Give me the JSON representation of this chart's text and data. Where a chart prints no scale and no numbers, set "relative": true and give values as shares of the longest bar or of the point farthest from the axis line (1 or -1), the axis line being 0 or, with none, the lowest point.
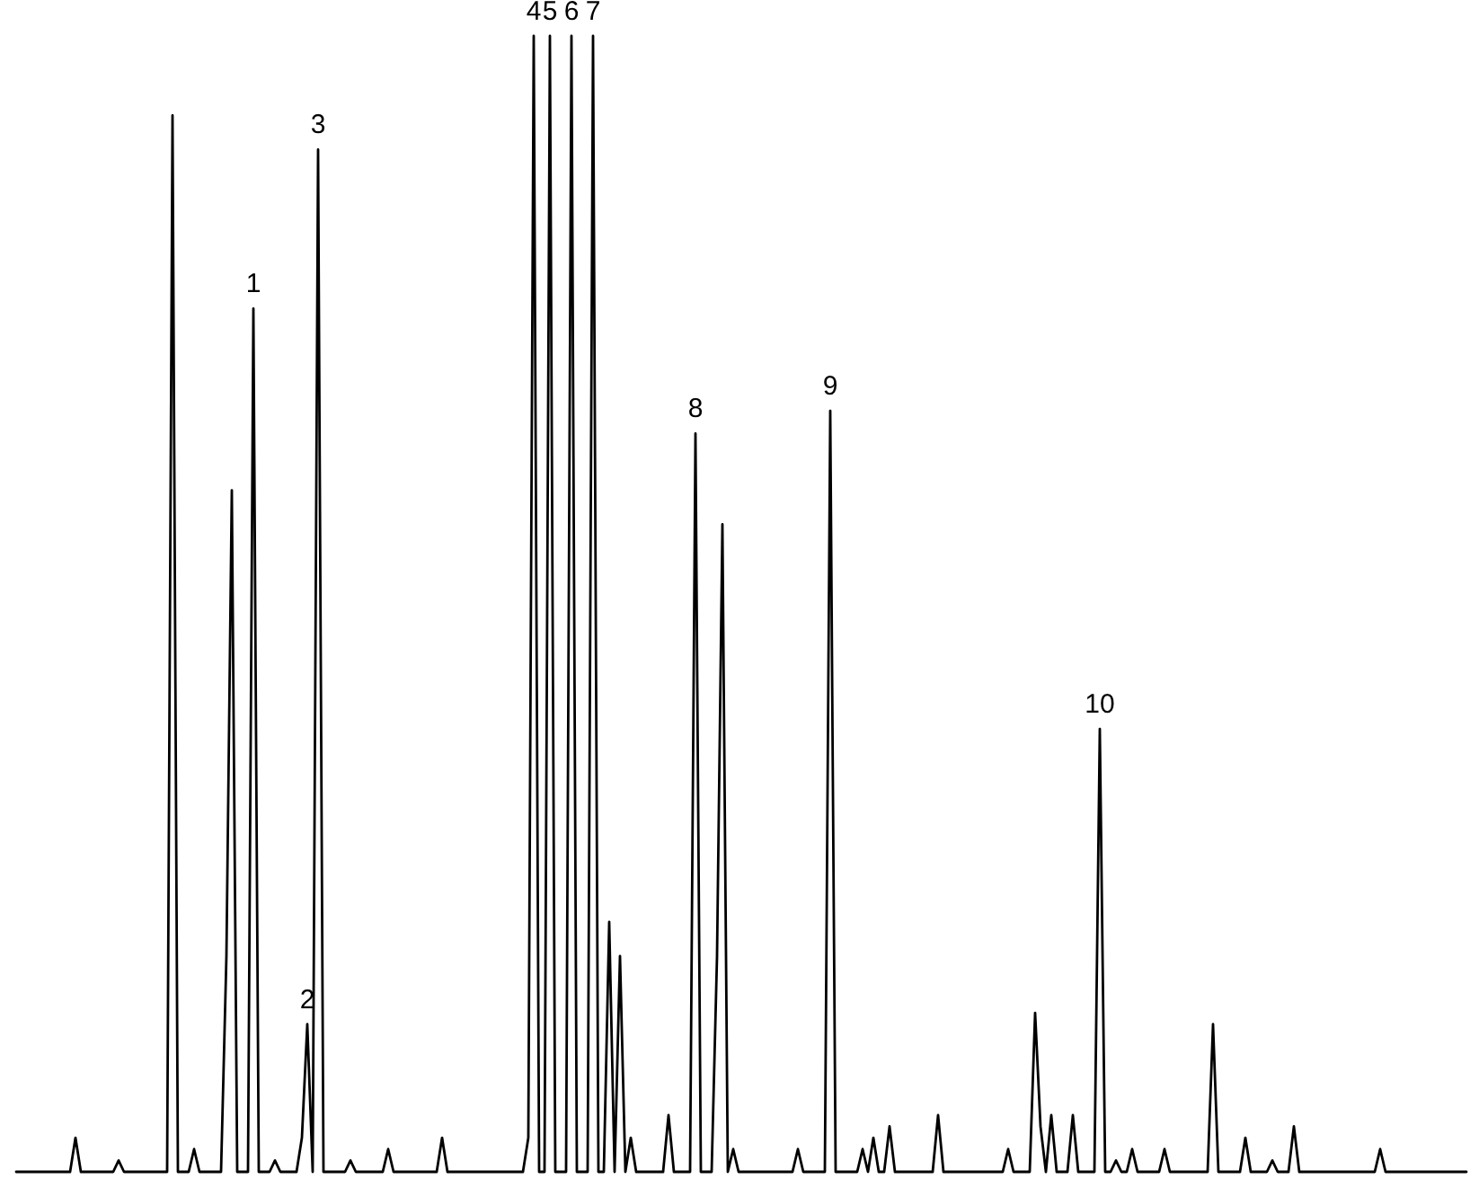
{
  "chart_data": {
    "type": "line",
    "relative": true,
    "categories": [
      null,
      null,
      null,
      null,
      null,
      null,
      null,
      null,
      null,
      null,
      null,
      null,
      null,
      null,
      null,
      null,
      null,
      null,
      null,
      null,
      null,
      null,
      null,
      null,
      null,
      null,
      null,
      null,
      null,
      null,
      null,
      null,
      null,
      null,
      null,
      null,
      null,
      null,
      null,
      null,
      null,
      null,
      null,
      null,
      "1",
      null,
      null,
      null,
      null,
      null,
      null,
      null,
      null,
      null,
      "2",
      null,
      "3",
      null,
      null,
      null,
      null,
      null,
      null,
      null,
      null,
      null,
      null,
      null,
      null,
      null,
      null,
      null,
      null,
      null,
      null,
      null,
      null,
      null,
      null,
      null,
      null,
      null,
      null,
      null,
      null,
      null,
      null,
      null,
      null,
      null,
      null,
      null,
      null,
      null,
      null,
      null,
      "4",
      null,
      null,
      "5",
      null,
      null,
      null,
      "6",
      null,
      null,
      null,
      "7",
      null,
      null,
      null,
      null,
      null,
      null,
      null,
      null,
      null,
      null,
      null,
      null,
      null,
      null,
      null,
      null,
      null,
      null,
      "8",
      null,
      null,
      null,
      null,
      null,
      null,
      null,
      null,
      null,
      null,
      null,
      null,
      null,
      null,
      null,
      null,
      null,
      null,
      null,
      null,
      null,
      null,
      null,
      null,
      "9",
      null,
      null,
      null,
      null,
      null,
      null,
      null,
      null,
      null,
      null,
      null,
      null,
      null,
      null,
      null,
      null,
      null,
      null,
      null,
      null,
      null,
      null,
      null,
      null,
      null,
      null,
      null,
      null,
      null,
      null,
      null,
      null,
      null,
      null,
      null,
      null,
      null,
      null,
      null,
      null,
      null,
      null,
      null,
      null,
      null,
      null,
      null,
      null,
      null,
      "10",
      null,
      null,
      null,
      null,
      null,
      null,
      null,
      null,
      null,
      null,
      null,
      null,
      null,
      null,
      null,
      null,
      null,
      null,
      null,
      null,
      null,
      null,
      null,
      null,
      null,
      null,
      null,
      null,
      null,
      null,
      null,
      null,
      null,
      null,
      null,
      null,
      null,
      null,
      null,
      null,
      null,
      null,
      null,
      null,
      null,
      null,
      null,
      null,
      null,
      null,
      null,
      null,
      null,
      null,
      null,
      null,
      null,
      null,
      null,
      null,
      null,
      null,
      null,
      null,
      null,
      null,
      null,
      null
    ],
    "series": [
      {
        "color": "#000000",
        "values": [
          0,
          0,
          0,
          0,
          0,
          0,
          0,
          0,
          0,
          0,
          0,
          0.03,
          0,
          0,
          0,
          0,
          0,
          0,
          0,
          0.01,
          0,
          0,
          0,
          0,
          0,
          0,
          0,
          0,
          0,
          0.93,
          0,
          0,
          0,
          0.02,
          0,
          0,
          0,
          0,
          0,
          0.19,
          0.6,
          0,
          0,
          0,
          0.76,
          0,
          0,
          0,
          0.01,
          0,
          0,
          0,
          0,
          0.03,
          0.13,
          0,
          0.9,
          0,
          0,
          0,
          0,
          0,
          0.01,
          0,
          0,
          0,
          0,
          0,
          0,
          0.02,
          0,
          0,
          0,
          0,
          0,
          0,
          0,
          0,
          0,
          0.03,
          0,
          0,
          0,
          0,
          0,
          0,
          0,
          0,
          0,
          0,
          0,
          0,
          0,
          0,
          0,
          0.03,
          1,
          0,
          0,
          1,
          0,
          0,
          0,
          1,
          0,
          0,
          0,
          1,
          0,
          0,
          0.22,
          0,
          0.19,
          0,
          0.03,
          0,
          0,
          0,
          0,
          0,
          0,
          0.05,
          0,
          0,
          0,
          0,
          0.65,
          0,
          0,
          0,
          0.19,
          0.57,
          0,
          0.02,
          0,
          0,
          0,
          0,
          0,
          0,
          0,
          0,
          0,
          0,
          0,
          0.02,
          0,
          0,
          0,
          0,
          0,
          0.67,
          0,
          0,
          0,
          0,
          0,
          0.02,
          0,
          0.03,
          0,
          0,
          0.04,
          0,
          0,
          0,
          0,
          0,
          0,
          0,
          0,
          0.05,
          0,
          0,
          0,
          0,
          0,
          0,
          0,
          0,
          0,
          0,
          0,
          0,
          0.02,
          0,
          0,
          0,
          0,
          0.14,
          0.04,
          0,
          0.05,
          0,
          0,
          0,
          0.05,
          0,
          0,
          0,
          0,
          0.39,
          0,
          0,
          0.01,
          0,
          0,
          0.02,
          0,
          0,
          0,
          0,
          0,
          0.02,
          0,
          0,
          0,
          0,
          0,
          0,
          0,
          0,
          0.13,
          0,
          0,
          0,
          0,
          0,
          0.03,
          0,
          0,
          0,
          0,
          0.01,
          0,
          0,
          0,
          0.04,
          0,
          0,
          0,
          0,
          0,
          0,
          0,
          0,
          0,
          0,
          0,
          0,
          0,
          0,
          0,
          0.02,
          0,
          0,
          0,
          0,
          0,
          0,
          0,
          0,
          0,
          0,
          0,
          0,
          0,
          0,
          0,
          0
        ]
      }
    ]
  }
}
